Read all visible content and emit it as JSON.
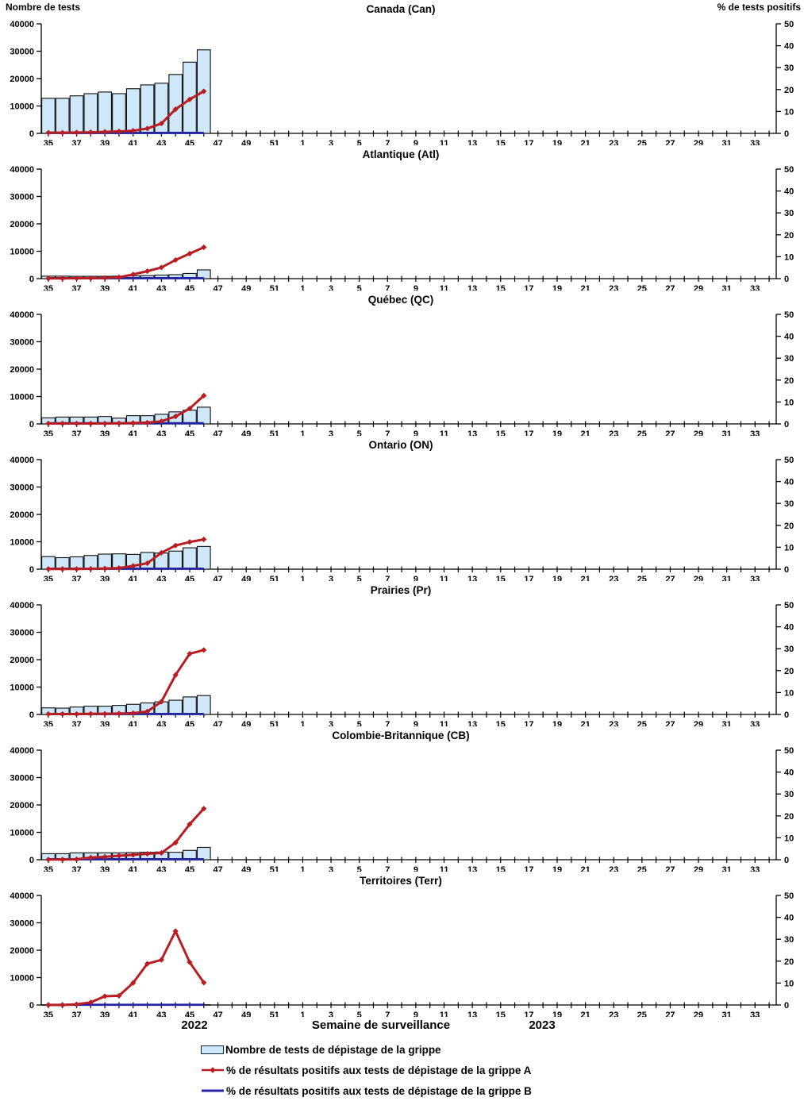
{
  "axis_left_label": "Nombre de tests",
  "axis_right_label": "% de tests positifs",
  "footer": {
    "year_left": "2022",
    "xlabel": "Semaine de surveillance",
    "year_right": "2023"
  },
  "legend": [
    {
      "label": "Nombre de tests de dépistage de la grippe"
    },
    {
      "label": "% de résultats positifs aux tests de dépistage de la grippe A"
    },
    {
      "label": "% de résultats positifs aux tests de dépistage de la grippe B"
    }
  ],
  "colors": {
    "bar_fill": "#cfe8f9",
    "bar_stroke": "#0d0d0d",
    "flu_a_red": "#b81d23",
    "flu_b_blue": "#2525a4",
    "axis": "#000000"
  },
  "chart_data": {
    "type": "bar",
    "subtype": "combo-bar-line-dual-axis",
    "x_weeks_2022": [
      35,
      36,
      37,
      38,
      39,
      40,
      41,
      42,
      43,
      44,
      45,
      46,
      47,
      48,
      49,
      50,
      51,
      52
    ],
    "x_weeks_2023": [
      1,
      2,
      3,
      4,
      5,
      6,
      7,
      8,
      9,
      10,
      11,
      12,
      13,
      14,
      15,
      16,
      17,
      18,
      19,
      20,
      21,
      22,
      23,
      24,
      25,
      26,
      27,
      28,
      29,
      30,
      31,
      32,
      33,
      34
    ],
    "x_tick_labels_shown": [
      "35",
      "37",
      "39",
      "41",
      "43",
      "45",
      "47",
      "49",
      "51",
      "1",
      "3",
      "5",
      "7",
      "9",
      "11",
      "13",
      "15",
      "17",
      "19",
      "21",
      "23",
      "25",
      "27",
      "29",
      "31",
      "33"
    ],
    "left_axis": {
      "label": "Nombre de tests",
      "min": 0,
      "max": 40000,
      "ticks": [
        0,
        10000,
        20000,
        30000,
        40000
      ]
    },
    "right_axis": {
      "label": "% de tests positifs",
      "min": 0,
      "max": 50,
      "ticks": [
        0,
        10,
        20,
        30,
        40,
        50
      ]
    },
    "data_weeks": [
      35,
      36,
      37,
      38,
      39,
      40,
      41,
      42,
      43,
      44,
      45,
      46
    ],
    "series_names": [
      "Nombre de tests de dépistage de la grippe",
      "% grippe A positifs",
      "% grippe B positifs"
    ],
    "panels": [
      {
        "title": "Canada (Can)",
        "tests": [
          12800,
          12800,
          13700,
          14500,
          15100,
          14500,
          16300,
          17700,
          18300,
          21500,
          26000,
          30500
        ],
        "pct_flu_a": [
          0.3,
          0.3,
          0.4,
          0.5,
          0.7,
          0.9,
          1.2,
          2.2,
          4.5,
          11.0,
          15.5,
          19.2
        ],
        "pct_flu_b": [
          0.2,
          0.2,
          0.2,
          0.2,
          0.2,
          0.2,
          0.2,
          0.2,
          0.2,
          0.2,
          0.2,
          0.2
        ]
      },
      {
        "title": "Atlantique (Atl)",
        "tests": [
          900,
          900,
          850,
          850,
          850,
          900,
          1000,
          1100,
          1300,
          1450,
          1900,
          3200
        ],
        "pct_flu_a": [
          0.1,
          0.1,
          0.2,
          0.2,
          0.3,
          0.6,
          1.9,
          3.4,
          5.1,
          8.5,
          11.4,
          14.3
        ],
        "pct_flu_b": [
          0.2,
          0.2,
          0.2,
          0.2,
          0.2,
          0.2,
          0.2,
          0.2,
          0.2,
          0.2,
          0.2,
          0.2
        ]
      },
      {
        "title": "Québec (QC)",
        "tests": [
          2200,
          2500,
          2500,
          2500,
          2700,
          2100,
          3000,
          3000,
          3500,
          4400,
          5000,
          6100
        ],
        "pct_flu_a": [
          0.2,
          0.2,
          0.2,
          0.2,
          0.2,
          0.3,
          0.4,
          0.6,
          1.2,
          3.4,
          7.0,
          12.9
        ],
        "pct_flu_b": [
          0.3,
          0.3,
          0.3,
          0.3,
          0.3,
          0.3,
          0.3,
          0.3,
          0.3,
          0.3,
          0.3,
          0.3
        ]
      },
      {
        "title": "Ontario (ON)",
        "tests": [
          4600,
          4200,
          4500,
          5000,
          5500,
          5600,
          5400,
          6100,
          5900,
          6600,
          7800,
          8300
        ],
        "pct_flu_a": [
          0.1,
          0.1,
          0.1,
          0.2,
          0.3,
          0.5,
          1.5,
          2.7,
          7.5,
          10.8,
          12.4,
          13.6
        ],
        "pct_flu_b": [
          0.2,
          0.2,
          0.2,
          0.2,
          0.2,
          0.2,
          0.2,
          0.2,
          0.2,
          0.2,
          0.2,
          0.2
        ]
      },
      {
        "title": "Prairies (Pr)",
        "tests": [
          2400,
          2300,
          2700,
          3000,
          3000,
          3300,
          3700,
          4200,
          4600,
          5200,
          6400,
          6900
        ],
        "pct_flu_a": [
          0.2,
          0.2,
          0.2,
          0.3,
          0.3,
          0.4,
          0.6,
          1.3,
          5.8,
          18.0,
          27.7,
          29.4
        ],
        "pct_flu_b": [
          0.2,
          0.2,
          0.2,
          0.2,
          0.2,
          0.2,
          0.2,
          0.2,
          0.2,
          0.2,
          0.2,
          0.2
        ]
      },
      {
        "title": "Colombie-Britannique (CB)",
        "tests": [
          2200,
          2200,
          2500,
          2500,
          2500,
          2500,
          2600,
          2700,
          2800,
          2700,
          3400,
          4500
        ],
        "pct_flu_a": [
          0.1,
          0.1,
          0.2,
          1.0,
          1.3,
          1.8,
          2.2,
          2.7,
          3.1,
          7.8,
          16.2,
          23.3
        ],
        "pct_flu_b": [
          0.2,
          0.2,
          0.2,
          0.2,
          0.2,
          0.2,
          0.2,
          0.2,
          0.2,
          0.2,
          0.2,
          0.2
        ]
      },
      {
        "title": "Territoires (Terr)",
        "tests": [
          60,
          60,
          70,
          80,
          90,
          100,
          110,
          120,
          110,
          100,
          90,
          80
        ],
        "pct_flu_a": [
          0.0,
          0.0,
          0.3,
          1.2,
          4.0,
          4.2,
          10.1,
          18.8,
          20.6,
          33.7,
          19.5,
          10.2
        ],
        "pct_flu_b": [
          0.1,
          0.1,
          0.1,
          0.1,
          0.1,
          0.1,
          0.1,
          0.1,
          0.1,
          0.1,
          0.1,
          0.1
        ]
      }
    ]
  }
}
